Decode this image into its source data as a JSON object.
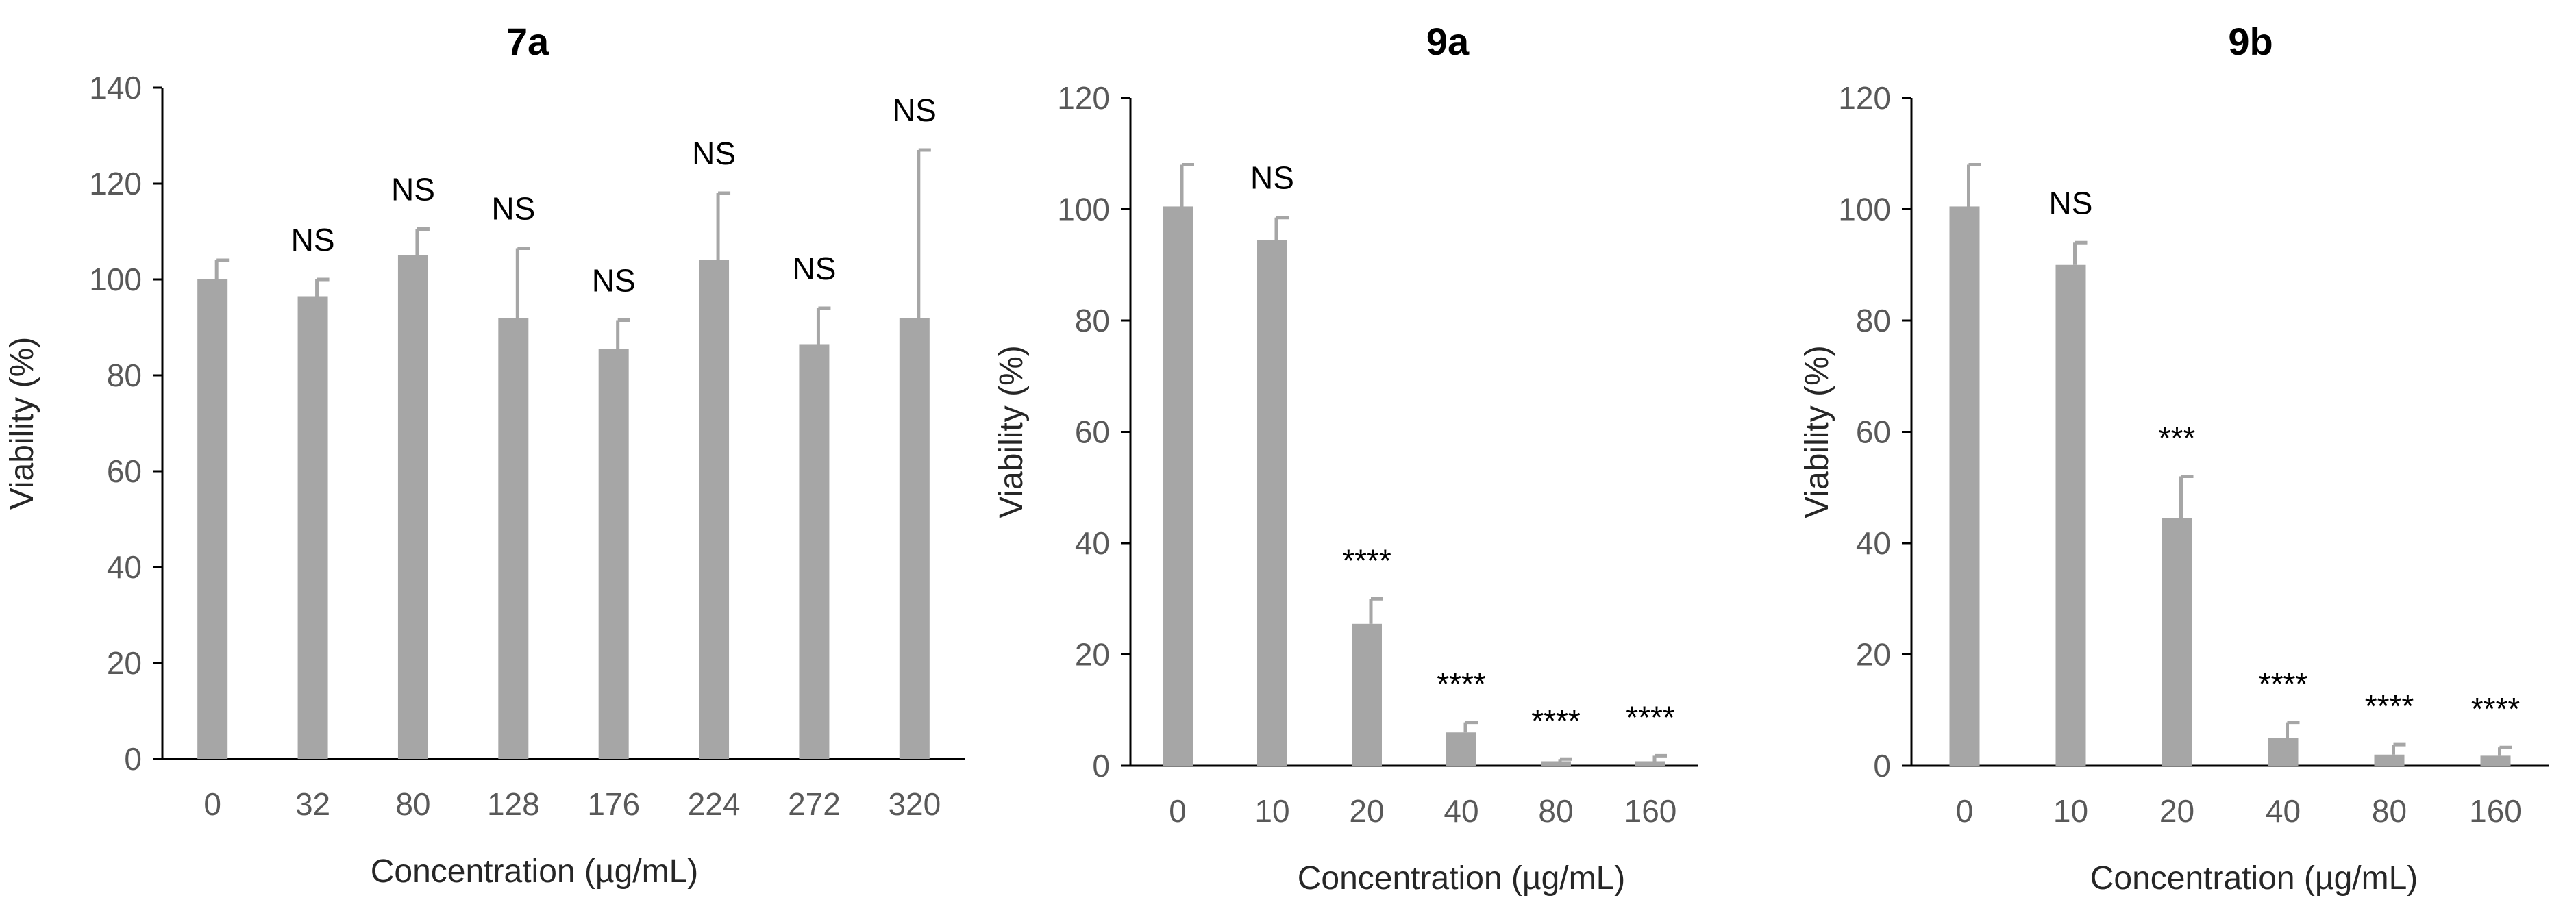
{
  "chart_data": [
    {
      "type": "bar",
      "title": "7a",
      "xlabel": "Concentration (µg/mL)",
      "ylabel": "Viability (%)",
      "ylim": [
        0,
        140
      ],
      "yticks": [
        0,
        20,
        40,
        60,
        80,
        100,
        120,
        140
      ],
      "categories": [
        "0",
        "32",
        "80",
        "128",
        "176",
        "224",
        "272",
        "320"
      ],
      "values": [
        100,
        96.5,
        105,
        92,
        85.5,
        104,
        86.5,
        92
      ],
      "errors": [
        4,
        3.5,
        5.5,
        14.5,
        6,
        14,
        7.5,
        35
      ],
      "annotations": [
        "",
        "NS",
        "NS",
        "NS",
        "NS",
        "NS",
        "NS",
        "NS"
      ],
      "bar_color": "#a6a6a6"
    },
    {
      "type": "bar",
      "title": "9a",
      "xlabel": "Concentration (µg/mL)",
      "ylabel": "Viability (%)",
      "ylim": [
        0,
        120
      ],
      "yticks": [
        0,
        20,
        40,
        60,
        80,
        100,
        120
      ],
      "categories": [
        "0",
        "10",
        "20",
        "40",
        "80",
        "160"
      ],
      "values": [
        100.5,
        94.5,
        25.5,
        6,
        0.8,
        0.8
      ],
      "errors": [
        7.5,
        4,
        4.5,
        1.8,
        0.4,
        1
      ],
      "annotations": [
        "",
        "NS",
        "****",
        "****",
        "****",
        "****"
      ],
      "bar_color": "#a6a6a6"
    },
    {
      "type": "bar",
      "title": "9b",
      "xlabel": "Concentration (µg/mL)",
      "ylabel": "Viability (%)",
      "ylim": [
        0,
        120
      ],
      "yticks": [
        0,
        20,
        40,
        60,
        80,
        100,
        120
      ],
      "categories": [
        "0",
        "10",
        "20",
        "40",
        "80",
        "160"
      ],
      "values": [
        100.5,
        90,
        44.5,
        5,
        2,
        1.8
      ],
      "errors": [
        7.5,
        4,
        7.5,
        2.8,
        1.8,
        1.5
      ],
      "annotations": [
        "",
        "NS",
        "***",
        "****",
        "****",
        "****"
      ],
      "bar_color": "#a6a6a6"
    }
  ]
}
